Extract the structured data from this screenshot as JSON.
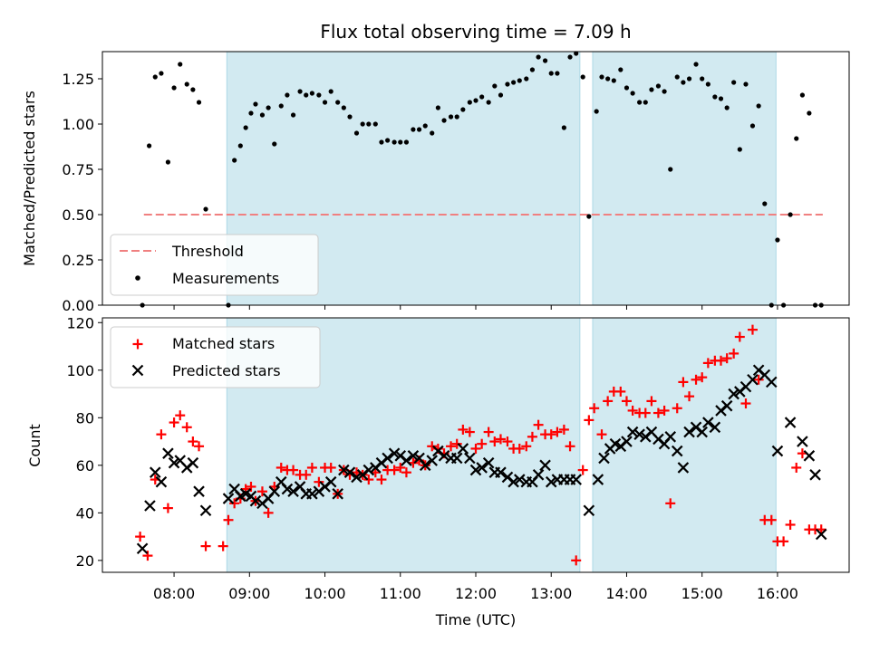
{
  "title": "Flux total observing time = 7.09 h",
  "colors": {
    "shade": "#add8e6",
    "threshold": "#f08080",
    "measurement": "#000000",
    "matched": "#ff0000",
    "predicted": "#000000"
  },
  "chart_data": [
    {
      "type": "scatter",
      "ylabel": "Matched/Predicted stars",
      "ylim": [
        0,
        1.4
      ],
      "yticks": [
        "0.00",
        "0.25",
        "0.50",
        "0.75",
        "1.00",
        "1.25"
      ],
      "shared_x_axis": "hours UTC",
      "legend": {
        "placement": "lower-left",
        "entries": [
          "Threshold",
          "Measurements"
        ]
      },
      "threshold": {
        "name": "Threshold",
        "y": 0.5,
        "x_range": [
          7.6,
          16.6
        ]
      },
      "shaded_intervals": [
        [
          8.7,
          13.38
        ],
        [
          13.55,
          15.98
        ]
      ],
      "series": [
        {
          "name": "Measurements",
          "style": "dot",
          "x": [
            7.58,
            7.67,
            7.75,
            7.83,
            7.92,
            8.0,
            8.08,
            8.17,
            8.25,
            8.33,
            8.42,
            8.72,
            8.8,
            8.88,
            8.95,
            9.02,
            9.08,
            9.17,
            9.25,
            9.33,
            9.42,
            9.5,
            9.58,
            9.67,
            9.75,
            9.83,
            9.92,
            10.0,
            10.08,
            10.17,
            10.25,
            10.33,
            10.42,
            10.5,
            10.58,
            10.67,
            10.75,
            10.83,
            10.92,
            11.0,
            11.08,
            11.17,
            11.25,
            11.33,
            11.42,
            11.5,
            11.58,
            11.67,
            11.75,
            11.83,
            11.92,
            12.0,
            12.08,
            12.17,
            12.25,
            12.33,
            12.42,
            12.5,
            12.58,
            12.67,
            12.75,
            12.83,
            12.92,
            13.0,
            13.08,
            13.17,
            13.25,
            13.33,
            13.42,
            13.5,
            13.6,
            13.67,
            13.75,
            13.83,
            13.92,
            14.0,
            14.08,
            14.17,
            14.25,
            14.33,
            14.42,
            14.5,
            14.58,
            14.67,
            14.75,
            14.83,
            14.92,
            15.0,
            15.08,
            15.17,
            15.25,
            15.33,
            15.42,
            15.5,
            15.58,
            15.67,
            15.75,
            15.83,
            15.92,
            16.0,
            16.08,
            16.17,
            16.25,
            16.33,
            16.42,
            16.5,
            16.58
          ],
          "y": [
            0.0,
            0.88,
            1.26,
            1.28,
            0.79,
            1.2,
            1.33,
            1.22,
            1.19,
            1.12,
            0.53,
            0.0,
            0.8,
            0.88,
            0.98,
            1.06,
            1.11,
            1.05,
            1.09,
            0.89,
            1.1,
            1.16,
            1.05,
            1.18,
            1.16,
            1.17,
            1.16,
            1.12,
            1.18,
            1.12,
            1.09,
            1.04,
            0.95,
            1.0,
            1.0,
            1.0,
            0.9,
            0.91,
            0.9,
            0.9,
            0.9,
            0.97,
            0.97,
            0.99,
            0.95,
            1.09,
            1.02,
            1.04,
            1.04,
            1.08,
            1.12,
            1.13,
            1.15,
            1.12,
            1.21,
            1.16,
            1.22,
            1.23,
            1.24,
            1.25,
            1.3,
            1.37,
            1.35,
            1.28,
            1.28,
            0.98,
            1.37,
            1.39,
            1.26,
            0.49,
            1.07,
            1.26,
            1.25,
            1.24,
            1.3,
            1.2,
            1.17,
            1.12,
            1.12,
            1.19,
            1.21,
            1.18,
            0.75,
            1.26,
            1.23,
            1.25,
            1.33,
            1.25,
            1.22,
            1.15,
            1.14,
            1.09,
            1.23,
            0.86,
            1.22,
            0.99,
            1.1,
            0.56,
            0.0,
            0.36,
            0.0,
            0.5,
            0.92,
            1.16,
            1.06,
            0.0,
            0.0
          ]
        }
      ]
    },
    {
      "type": "scatter",
      "xlabel": "Time (UTC)",
      "ylabel": "Count",
      "ylim": [
        15,
        122
      ],
      "yticks": [
        "20",
        "40",
        "60",
        "80",
        "100",
        "120"
      ],
      "xlim": [
        7.05,
        16.95
      ],
      "xticks": [
        "08:00",
        "09:00",
        "10:00",
        "11:00",
        "12:00",
        "13:00",
        "14:00",
        "15:00",
        "16:00"
      ],
      "legend": {
        "placement": "upper-left",
        "entries": [
          "Matched stars",
          "Predicted stars"
        ]
      },
      "shaded_intervals": [
        [
          8.7,
          13.38
        ],
        [
          13.55,
          15.98
        ]
      ],
      "series": [
        {
          "name": "Matched stars",
          "style": "plus",
          "x": [
            7.55,
            7.65,
            7.75,
            7.83,
            7.92,
            8.0,
            8.08,
            8.17,
            8.25,
            8.33,
            8.42,
            8.65,
            8.72,
            8.8,
            8.88,
            8.95,
            9.02,
            9.08,
            9.17,
            9.25,
            9.33,
            9.42,
            9.5,
            9.58,
            9.67,
            9.75,
            9.83,
            9.92,
            10.0,
            10.08,
            10.17,
            10.25,
            10.33,
            10.42,
            10.5,
            10.58,
            10.67,
            10.75,
            10.83,
            10.92,
            11.0,
            11.08,
            11.17,
            11.25,
            11.33,
            11.42,
            11.5,
            11.58,
            11.67,
            11.75,
            11.83,
            11.92,
            12.0,
            12.08,
            12.17,
            12.25,
            12.33,
            12.42,
            12.5,
            12.58,
            12.67,
            12.75,
            12.83,
            12.92,
            13.0,
            13.08,
            13.17,
            13.25,
            13.33,
            13.42,
            13.5,
            13.57,
            13.67,
            13.75,
            13.83,
            13.92,
            14.0,
            14.08,
            14.17,
            14.25,
            14.33,
            14.42,
            14.5,
            14.58,
            14.67,
            14.75,
            14.83,
            14.92,
            15.0,
            15.08,
            15.17,
            15.25,
            15.33,
            15.42,
            15.5,
            15.58,
            15.67,
            15.75,
            15.83,
            15.92,
            16.0,
            16.08,
            16.17,
            16.25,
            16.33,
            16.42,
            16.5,
            16.58
          ],
          "y": [
            30,
            22,
            54,
            73,
            42,
            78,
            81,
            76,
            70,
            68,
            26,
            26,
            37,
            44,
            46,
            50,
            51,
            45,
            49,
            40,
            51,
            59,
            58,
            58,
            56,
            56,
            59,
            53,
            59,
            59,
            48,
            58,
            56,
            57,
            56,
            54,
            57,
            54,
            58,
            58,
            59,
            57,
            61,
            62,
            60,
            68,
            67,
            65,
            68,
            69,
            75,
            74,
            67,
            69,
            74,
            70,
            71,
            70,
            67,
            67,
            68,
            72,
            77,
            73,
            73,
            74,
            75,
            68,
            20,
            58,
            79,
            84,
            73,
            87,
            91,
            91,
            87,
            83,
            82,
            82,
            87,
            82,
            83,
            44,
            84,
            95,
            89,
            96,
            97,
            103,
            104,
            104,
            105,
            107,
            114,
            86,
            117,
            96,
            37,
            37,
            28,
            28,
            35,
            59,
            65,
            33,
            33,
            33
          ]
        },
        {
          "name": "Predicted stars",
          "style": "x",
          "x": [
            7.58,
            7.68,
            7.75,
            7.83,
            7.92,
            8.0,
            8.08,
            8.17,
            8.25,
            8.33,
            8.42,
            8.72,
            8.8,
            8.88,
            8.95,
            9.02,
            9.08,
            9.17,
            9.25,
            9.33,
            9.42,
            9.5,
            9.58,
            9.67,
            9.75,
            9.83,
            9.92,
            10.0,
            10.08,
            10.17,
            10.25,
            10.33,
            10.42,
            10.5,
            10.58,
            10.67,
            10.75,
            10.83,
            10.92,
            11.0,
            11.08,
            11.17,
            11.25,
            11.33,
            11.42,
            11.5,
            11.58,
            11.67,
            11.75,
            11.83,
            11.92,
            12.0,
            12.08,
            12.17,
            12.25,
            12.33,
            12.42,
            12.5,
            12.58,
            12.67,
            12.75,
            12.83,
            12.92,
            13.0,
            13.08,
            13.17,
            13.25,
            13.33,
            13.5,
            13.62,
            13.7,
            13.78,
            13.85,
            13.92,
            14.0,
            14.08,
            14.17,
            14.25,
            14.33,
            14.42,
            14.5,
            14.58,
            14.67,
            14.75,
            14.83,
            14.92,
            15.0,
            15.08,
            15.17,
            15.25,
            15.33,
            15.42,
            15.5,
            15.58,
            15.67,
            15.75,
            15.83,
            15.92,
            16.0,
            16.17,
            16.33,
            16.42,
            16.5,
            16.58
          ],
          "y": [
            25,
            43,
            57,
            53,
            65,
            61,
            62,
            59,
            61,
            49,
            41,
            46,
            50,
            47,
            48,
            47,
            45,
            44,
            46,
            49,
            53,
            50,
            49,
            51,
            48,
            48,
            49,
            51,
            53,
            48,
            58,
            57,
            55,
            56,
            58,
            59,
            61,
            63,
            65,
            64,
            62,
            64,
            63,
            60,
            62,
            66,
            64,
            63,
            63,
            67,
            63,
            58,
            59,
            61,
            57,
            57,
            55,
            53,
            54,
            53,
            53,
            56,
            60,
            53,
            54,
            54,
            54,
            54,
            41,
            54,
            63,
            67,
            69,
            68,
            70,
            74,
            73,
            72,
            74,
            71,
            69,
            72,
            66,
            59,
            74,
            76,
            74,
            78,
            76,
            83,
            85,
            90,
            91,
            93,
            96,
            100,
            98,
            95,
            66,
            78,
            70,
            64,
            56,
            31
          ]
        }
      ]
    }
  ]
}
